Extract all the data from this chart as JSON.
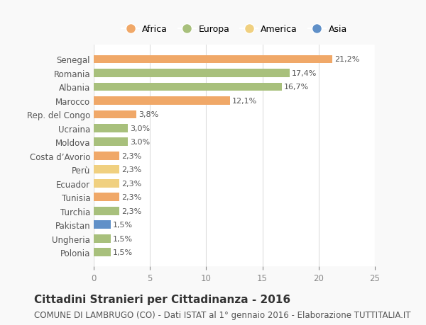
{
  "categories": [
    "Polonia",
    "Ungheria",
    "Pakistan",
    "Turchia",
    "Tunisia",
    "Ecuador",
    "Perù",
    "Costa d’Avorio",
    "Moldova",
    "Ucraina",
    "Rep. del Congo",
    "Marocco",
    "Albania",
    "Romania",
    "Senegal"
  ],
  "values": [
    1.5,
    1.5,
    1.5,
    2.3,
    2.3,
    2.3,
    2.3,
    2.3,
    3.0,
    3.0,
    3.8,
    12.1,
    16.7,
    17.4,
    21.2
  ],
  "labels": [
    "1,5%",
    "1,5%",
    "1,5%",
    "2,3%",
    "2,3%",
    "2,3%",
    "2,3%",
    "2,3%",
    "3,0%",
    "3,0%",
    "3,8%",
    "12,1%",
    "16,7%",
    "17,4%",
    "21,2%"
  ],
  "continent": [
    "Europa",
    "Europa",
    "Asia",
    "Europa",
    "Africa",
    "America",
    "America",
    "Africa",
    "Europa",
    "Europa",
    "Africa",
    "Africa",
    "Europa",
    "Europa",
    "Africa"
  ],
  "colors": {
    "Africa": "#F0A868",
    "Europa": "#A8C07C",
    "America": "#F0D080",
    "Asia": "#6090C8"
  },
  "xlim": [
    0,
    25
  ],
  "xticks": [
    0,
    5,
    10,
    15,
    20,
    25
  ],
  "legend_order": [
    "Africa",
    "Europa",
    "America",
    "Asia"
  ],
  "title": "Cittadini Stranieri per Cittadinanza - 2016",
  "subtitle": "COMUNE DI LAMBRUGO (CO) - Dati ISTAT al 1° gennaio 2016 - Elaborazione TUTTITALIA.IT",
  "background_color": "#f9f9f9",
  "bar_background": "#ffffff",
  "title_fontsize": 11,
  "subtitle_fontsize": 8.5,
  "label_fontsize": 8,
  "tick_fontsize": 8.5,
  "legend_fontsize": 9
}
